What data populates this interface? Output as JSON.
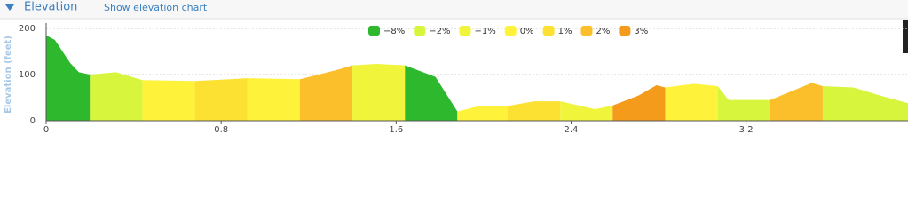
{
  "header": {
    "title": "Elevation",
    "link": "Show elevation chart"
  },
  "chart_data": {
    "type": "area",
    "y_label": "Elevation (feet)",
    "x": [
      0,
      0.04,
      0.11,
      0.15,
      0.2,
      0.32,
      0.44,
      0.68,
      0.8,
      0.92,
      1.16,
      1.33,
      1.4,
      1.51,
      1.64,
      1.78,
      1.88,
      1.98,
      2.11,
      2.23,
      2.35,
      2.51,
      2.59,
      2.71,
      2.79,
      2.83,
      2.96,
      3.07,
      3.12,
      3.31,
      3.5,
      3.55,
      3.69,
      3.81,
      3.94
    ],
    "series": [
      {
        "name": "−8%",
        "color": "#2db82d",
        "values": [
          185,
          175,
          125,
          105,
          100,
          null,
          null,
          null,
          null,
          null,
          null,
          null,
          null,
          null,
          120,
          95,
          20,
          null,
          null,
          null,
          null,
          null,
          null,
          null,
          null,
          null,
          null,
          null,
          null,
          null,
          null,
          null,
          null,
          null,
          null
        ]
      },
      {
        "name": "−2%",
        "color": "#d6f53c",
        "values": [
          null,
          null,
          null,
          null,
          100,
          105,
          88,
          null,
          null,
          null,
          null,
          null,
          null,
          null,
          null,
          null,
          null,
          null,
          null,
          null,
          null,
          null,
          null,
          null,
          null,
          null,
          null,
          75,
          45,
          45,
          null,
          75,
          72,
          55,
          38
        ]
      },
      {
        "name": "−1%",
        "color": "#f0f53c",
        "values": [
          null,
          null,
          null,
          null,
          null,
          null,
          null,
          null,
          null,
          null,
          null,
          null,
          120,
          123,
          120,
          null,
          null,
          null,
          null,
          null,
          42,
          25,
          33,
          null,
          null,
          null,
          null,
          null,
          null,
          null,
          null,
          null,
          null,
          null,
          null
        ]
      },
      {
        "name": "0%",
        "color": "#fff23b",
        "values": [
          null,
          null,
          null,
          null,
          null,
          null,
          88,
          86,
          null,
          92,
          90,
          null,
          null,
          null,
          null,
          null,
          20,
          32,
          32,
          null,
          null,
          null,
          null,
          null,
          null,
          72,
          80,
          75,
          null,
          null,
          null,
          null,
          null,
          null,
          null
        ]
      },
      {
        "name": "1%",
        "color": "#fde132",
        "values": [
          null,
          null,
          null,
          null,
          null,
          null,
          null,
          86,
          89,
          92,
          null,
          null,
          null,
          null,
          null,
          null,
          null,
          null,
          32,
          42,
          42,
          null,
          null,
          null,
          null,
          null,
          null,
          null,
          null,
          null,
          null,
          null,
          null,
          null,
          null
        ]
      },
      {
        "name": "2%",
        "color": "#fbbf2c",
        "values": [
          null,
          null,
          null,
          null,
          null,
          null,
          null,
          null,
          null,
          null,
          90,
          110,
          120,
          null,
          null,
          null,
          null,
          null,
          null,
          null,
          null,
          null,
          null,
          null,
          null,
          null,
          null,
          null,
          null,
          45,
          82,
          75,
          null,
          null,
          null
        ]
      },
      {
        "name": "3%",
        "color": "#f59b1c",
        "values": [
          null,
          null,
          null,
          null,
          null,
          null,
          null,
          null,
          null,
          null,
          null,
          null,
          null,
          null,
          null,
          null,
          null,
          null,
          null,
          null,
          null,
          null,
          33,
          55,
          77,
          72,
          null,
          null,
          null,
          null,
          null,
          null,
          null,
          null,
          null
        ]
      }
    ],
    "xlim": [
      0,
      3.94
    ],
    "xticks": [
      0,
      0.8,
      1.6,
      2.4,
      3.2
    ],
    "ylim": [
      0,
      200
    ],
    "yticks": [
      0,
      100,
      200
    ],
    "grid": true
  }
}
